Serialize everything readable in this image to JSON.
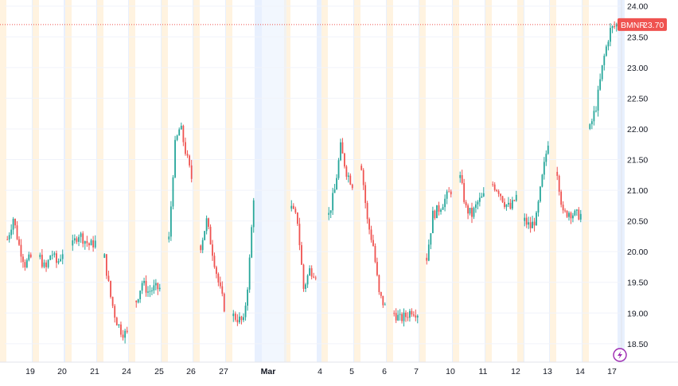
{
  "colors": {
    "up": "#26a69a",
    "down": "#ef5350",
    "session_pre": "#fff3e0",
    "session_post": "#e8f0fe",
    "grid": "#f0f3fa",
    "price_line": "#ef5350",
    "badge_bg": "#ef5350",
    "axis_text": "#131722",
    "lightning": "#9c27b0"
  },
  "icons": {
    "corner": "lightning-icon"
  },
  "chart_data": {
    "type": "candlestick",
    "symbol": "BMNR",
    "last_price": "23.70",
    "last_value": 23.7,
    "ylim": [
      18.2,
      24.1
    ],
    "y_ticks": [
      "18.50",
      "19.00",
      "19.50",
      "20.00",
      "20.50",
      "21.00",
      "21.50",
      "22.00",
      "22.50",
      "23.00",
      "23.50",
      "24.00"
    ],
    "x_labels": [
      "19",
      "20",
      "21",
      "24",
      "25",
      "26",
      "27",
      "Mar",
      "4",
      "5",
      "6",
      "7",
      "10",
      "11",
      "12",
      "13",
      "14",
      "17"
    ],
    "sessions": [
      {
        "label": "19",
        "anchors": [
          20.2,
          20.55,
          20.1,
          19.8,
          19.9
        ]
      },
      {
        "label": "20",
        "anchors": [
          19.9,
          19.7,
          20.0,
          19.8,
          20.0
        ]
      },
      {
        "label": "21",
        "anchors": [
          20.1,
          20.3,
          20.2,
          20.1,
          20.15
        ]
      },
      {
        "label": "24",
        "anchors": [
          19.9,
          19.3,
          18.9,
          18.7,
          18.65
        ]
      },
      {
        "label": "25",
        "anchors": [
          19.2,
          19.5,
          19.35,
          19.4,
          19.4
        ]
      },
      {
        "label": "26",
        "anchors": [
          20.2,
          21.7,
          22.05,
          21.6,
          21.2
        ]
      },
      {
        "label": "27",
        "anchors": [
          20.1,
          20.5,
          20.0,
          19.5,
          19.1
        ]
      },
      {
        "label": "Mar",
        "anchors": [
          18.95,
          18.9,
          18.85,
          19.6,
          20.9
        ]
      },
      {
        "label": "4",
        "anchors": [
          20.7,
          20.5,
          19.4,
          19.7,
          19.65
        ]
      },
      {
        "label": "5",
        "anchors": [
          20.6,
          21.0,
          21.7,
          21.3,
          21.1
        ]
      },
      {
        "label": "6",
        "anchors": [
          21.4,
          20.5,
          20.1,
          19.3,
          19.1
        ]
      },
      {
        "label": "7",
        "anchors": [
          19.0,
          18.9,
          18.95,
          19.05,
          19.0
        ]
      },
      {
        "label": "10",
        "anchors": [
          19.9,
          20.6,
          20.7,
          20.85,
          21.0
        ]
      },
      {
        "label": "11",
        "anchors": [
          21.2,
          20.7,
          20.6,
          20.8,
          20.9
        ]
      },
      {
        "label": "12",
        "anchors": [
          21.1,
          21.0,
          20.8,
          20.7,
          20.9
        ]
      },
      {
        "label": "13",
        "anchors": [
          20.5,
          20.4,
          20.55,
          21.2,
          21.8
        ]
      },
      {
        "label": "14",
        "anchors": [
          21.3,
          20.6,
          20.65,
          20.6,
          20.6
        ]
      },
      {
        "label": "17",
        "anchors": [
          22.0,
          22.4,
          23.1,
          23.6,
          23.7
        ]
      }
    ]
  }
}
